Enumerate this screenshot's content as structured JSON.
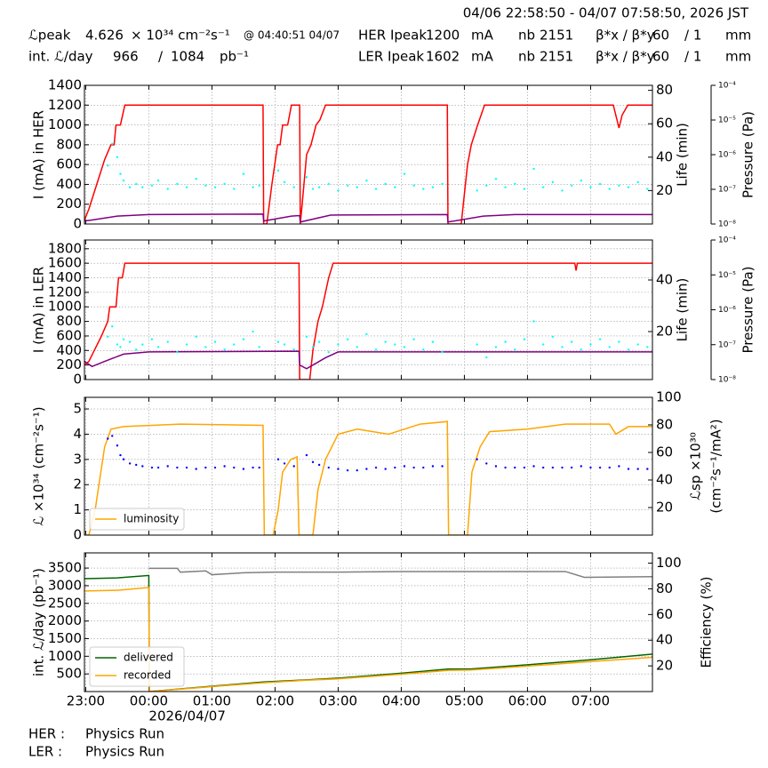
{
  "header": {
    "time_range": "04/06 22:58:50 - 04/07 07:58:50, 2026 JST",
    "row1": [
      "ℒpeak",
      "4.626",
      "× 10³⁴ cm⁻²s⁻¹",
      "@ 04:40:51 04/07",
      "HER Ipeak",
      "1200",
      "mA",
      "nb",
      "2151",
      "β*x / β*y",
      "60",
      "/ 1",
      "mm"
    ],
    "row2": [
      "int. ℒ/day",
      "966",
      "/",
      "1084",
      "pb⁻¹",
      "LER Ipeak",
      "1602",
      "mA",
      "nb",
      "2151",
      "β*x / β*y",
      "60",
      "/ 1",
      "mm"
    ]
  },
  "footer": {
    "rows": [
      [
        "HER :",
        "Physics Run"
      ],
      [
        "LER :",
        "Physics Run"
      ]
    ]
  },
  "chart_data": [
    {
      "type": "line",
      "ylabel": "I (mA) in HER",
      "y2label": [
        "Life (min)"
      ],
      "y3label": "Pressure (Pa)",
      "grid": true,
      "xlim": [
        22.98,
        31.98
      ],
      "ylim": [
        0,
        1400
      ],
      "yticks": [
        0,
        200,
        400,
        600,
        800,
        1000,
        1200,
        1400
      ],
      "y2lim": [
        0,
        83
      ],
      "y2ticks": [
        20,
        40,
        60,
        80
      ],
      "y3lim": [
        1e-08,
        0.0001
      ],
      "y3log": true,
      "y3ticks": [
        {
          "value": 1e-08,
          "label": "10⁻⁸"
        },
        {
          "value": 1e-07,
          "label": "10⁻⁷"
        },
        {
          "value": 1e-06,
          "label": "10⁻⁶"
        },
        {
          "value": 1e-05,
          "label": "10⁻⁵"
        },
        {
          "value": 0.0001,
          "label": "10⁻⁴"
        }
      ],
      "series": [
        {
          "color": "#ff0000",
          "style": "line",
          "x": [
            22.98,
            23.05,
            23.3,
            23.4,
            23.45,
            23.48,
            23.55,
            23.62,
            25.81,
            25.82,
            25.87,
            25.95,
            26.04,
            26.08,
            26.12,
            26.2,
            26.26,
            26.39,
            26.4,
            26.43,
            26.5,
            26.57,
            26.65,
            26.71,
            26.8,
            28.73,
            28.74,
            28.95,
            29.05,
            29.11,
            29.16,
            29.21,
            29.32,
            31.36,
            31.45,
            31.5,
            31.59,
            31.98
          ],
          "values": [
            40,
            150,
            650,
            800,
            800,
            1000,
            1000,
            1200,
            1200,
            0,
            0,
            400,
            800,
            800,
            1000,
            1000,
            1200,
            1200,
            0,
            200,
            700,
            800,
            1000,
            1050,
            1200,
            1200,
            0,
            0,
            600,
            800,
            900,
            1000,
            1200,
            1200,
            970,
            1100,
            1200,
            1200
          ]
        },
        {
          "color": "#800080",
          "style": "line",
          "x": [
            22.98,
            23.1,
            23.5,
            24.0,
            25.81,
            25.82,
            26.26,
            26.39,
            26.4,
            26.88,
            28.73,
            28.74,
            29.3,
            29.8,
            31.98
          ],
          "values": [
            30,
            40,
            80,
            95,
            100,
            30,
            80,
            85,
            20,
            90,
            95,
            20,
            80,
            95,
            95
          ]
        },
        {
          "color": "#00ffff",
          "style": "points",
          "axis": "y2",
          "x": [
            23.35,
            23.42,
            23.5,
            23.55,
            23.6,
            23.7,
            23.8,
            23.9,
            24.05,
            24.15,
            24.3,
            24.45,
            24.6,
            24.75,
            24.9,
            25.05,
            25.2,
            25.35,
            25.5,
            25.65,
            25.75,
            26.05,
            26.15,
            26.3,
            26.5,
            26.6,
            26.7,
            26.85,
            27.0,
            27.15,
            27.3,
            27.45,
            27.6,
            27.75,
            27.9,
            28.05,
            28.2,
            28.35,
            28.5,
            28.65,
            29.2,
            29.35,
            29.5,
            29.65,
            29.8,
            29.95,
            30.1,
            30.25,
            30.4,
            30.55,
            30.7,
            30.85,
            31.0,
            31.15,
            31.3,
            31.45,
            31.6,
            31.75,
            31.9
          ],
          "values": [
            35,
            48,
            40,
            30,
            26,
            22,
            24,
            22,
            23,
            26,
            21,
            24,
            22,
            27,
            23,
            22,
            24,
            21,
            30,
            22,
            23,
            32,
            25,
            22,
            28,
            21,
            22,
            24,
            20,
            23,
            22,
            26,
            21,
            24,
            22,
            30,
            23,
            21,
            22,
            24,
            20,
            23,
            27,
            22,
            24,
            21,
            33,
            22,
            25,
            20,
            23,
            26,
            22,
            24,
            21,
            23,
            22,
            25,
            21
          ]
        }
      ]
    },
    {
      "type": "line",
      "ylabel": "I (mA) in LER",
      "y2label": [
        "Life (min)"
      ],
      "y3label": "Pressure (Pa)",
      "grid": true,
      "xlim": [
        22.98,
        31.98
      ],
      "ylim": [
        0,
        1920
      ],
      "yticks": [
        0,
        200,
        400,
        600,
        800,
        1000,
        1200,
        1400,
        1600,
        1800
      ],
      "y2lim": [
        1.4,
        55.5
      ],
      "y2ticks": [
        20,
        40
      ],
      "y3lim": [
        1e-08,
        0.0001
      ],
      "y3log": true,
      "y3ticks": [
        {
          "value": 1e-08,
          "label": "10⁻⁸"
        },
        {
          "value": 1e-07,
          "label": "10⁻⁷"
        },
        {
          "value": 1e-06,
          "label": "10⁻⁶"
        },
        {
          "value": 1e-05,
          "label": "10⁻⁵"
        },
        {
          "value": 0.0001,
          "label": "10⁻⁴"
        }
      ],
      "series": [
        {
          "color": "#ff0000",
          "style": "line",
          "x": [
            22.98,
            23.05,
            23.25,
            23.35,
            23.38,
            23.48,
            23.52,
            23.58,
            23.62,
            26.38,
            26.39,
            26.55,
            26.6,
            26.68,
            26.75,
            26.8,
            26.85,
            26.92,
            30.75,
            30.77,
            30.79,
            31.98
          ],
          "values": [
            200,
            250,
            600,
            800,
            1000,
            1000,
            1400,
            1400,
            1600,
            1600,
            0,
            0,
            400,
            800,
            1000,
            1200,
            1400,
            1600,
            1600,
            1500,
            1600,
            1600
          ]
        },
        {
          "color": "#800080",
          "style": "line",
          "x": [
            22.98,
            23.1,
            23.3,
            23.6,
            24.0,
            26.38,
            26.39,
            26.5,
            26.8,
            27.0,
            31.98
          ],
          "values": [
            250,
            180,
            250,
            350,
            380,
            390,
            200,
            150,
            300,
            380,
            380
          ]
        },
        {
          "color": "#00ffff",
          "style": "points",
          "axis": "y2",
          "x": [
            23.35,
            23.42,
            23.5,
            23.55,
            23.6,
            23.7,
            23.8,
            23.9,
            24.05,
            24.15,
            24.3,
            24.45,
            24.6,
            24.75,
            24.9,
            25.05,
            25.2,
            25.35,
            25.5,
            25.65,
            25.75,
            26.05,
            26.15,
            26.3,
            26.5,
            26.6,
            26.7,
            26.85,
            27.0,
            27.15,
            27.3,
            27.45,
            27.6,
            27.75,
            27.9,
            28.05,
            28.2,
            28.35,
            28.5,
            28.65,
            29.2,
            29.35,
            29.5,
            29.65,
            29.8,
            29.95,
            30.1,
            30.25,
            30.4,
            30.55,
            30.7,
            30.85,
            31.0,
            31.15,
            31.3,
            31.45,
            31.6,
            31.75,
            31.9
          ],
          "values": [
            18,
            22,
            15,
            14,
            17,
            16,
            13,
            15,
            17,
            14,
            16,
            12,
            15,
            18,
            14,
            16,
            13,
            15,
            17,
            20,
            14,
            16,
            15,
            13,
            18,
            14,
            16,
            12,
            15,
            17,
            14,
            19,
            13,
            16,
            15,
            14,
            17,
            13,
            16,
            12,
            15,
            10,
            14,
            16,
            13,
            17,
            24,
            15,
            18,
            14,
            16,
            13,
            15,
            17,
            14,
            16,
            13,
            15,
            14
          ]
        }
      ]
    },
    {
      "type": "line",
      "ylabel": "ℒ ×10³⁴ (cm⁻²s⁻¹)",
      "y2label": [
        "ℒsp ×10³⁰",
        "(cm⁻²s⁻¹/mA²)"
      ],
      "grid": true,
      "legend": "lower left",
      "xlim": [
        22.98,
        31.98
      ],
      "ylim": [
        0,
        5.46
      ],
      "yticks": [
        0,
        1,
        2,
        3,
        4,
        5
      ],
      "y2lim": [
        0,
        100
      ],
      "y2ticks": [
        20,
        40,
        60,
        80,
        100
      ],
      "series": [
        {
          "name": "luminosity",
          "color": "#ffa500",
          "style": "line",
          "x": [
            22.98,
            23.05,
            23.15,
            23.3,
            23.4,
            23.6,
            24.5,
            25.81,
            25.83,
            25.97,
            26.05,
            26.12,
            26.25,
            26.35,
            26.38,
            26.6,
            26.68,
            26.8,
            27.0,
            27.3,
            27.8,
            28.3,
            28.73,
            28.75,
            29.05,
            29.12,
            29.25,
            29.4,
            30.0,
            30.6,
            31.3,
            31.4,
            31.6,
            31.98
          ],
          "values": [
            0,
            0,
            1,
            3.5,
            4.2,
            4.3,
            4.4,
            4.35,
            0,
            0,
            1,
            2.5,
            3,
            3.1,
            0,
            0,
            1.8,
            3,
            4.0,
            4.2,
            4.0,
            4.4,
            4.5,
            0,
            0,
            2.5,
            3.5,
            4.1,
            4.2,
            4.4,
            4.4,
            4.0,
            4.3,
            4.3
          ]
        },
        {
          "color": "#0000ff",
          "style": "points",
          "axis": "y2",
          "x": [
            23.35,
            23.42,
            23.5,
            23.55,
            23.6,
            23.7,
            23.8,
            23.9,
            24.05,
            24.15,
            24.3,
            24.45,
            24.6,
            24.75,
            24.9,
            25.05,
            25.2,
            25.35,
            25.5,
            25.65,
            25.75,
            26.05,
            26.15,
            26.3,
            26.5,
            26.6,
            26.7,
            26.85,
            27.0,
            27.15,
            27.3,
            27.45,
            27.6,
            27.75,
            27.9,
            28.05,
            28.2,
            28.35,
            28.5,
            28.65,
            29.2,
            29.35,
            29.5,
            29.65,
            29.8,
            29.95,
            30.1,
            30.25,
            30.4,
            30.55,
            30.7,
            30.85,
            31.0,
            31.15,
            31.3,
            31.45,
            31.6,
            31.75,
            31.9
          ],
          "values": [
            70,
            72,
            65,
            58,
            55,
            52,
            51,
            50,
            49,
            49,
            50,
            49,
            49,
            48,
            49,
            49,
            50,
            49,
            48,
            49,
            49,
            55,
            52,
            50,
            58,
            53,
            51,
            49,
            48,
            47,
            47,
            48,
            49,
            48,
            49,
            50,
            49,
            49,
            50,
            50,
            55,
            52,
            50,
            49,
            49,
            49,
            50,
            49,
            49,
            49,
            49,
            50,
            49,
            49,
            49,
            50,
            48,
            48,
            48
          ]
        }
      ]
    },
    {
      "type": "line",
      "ylabel": "int. ℒ/day (pb⁻¹)",
      "y2label": [
        "Efficiency (%)"
      ],
      "grid": true,
      "legend": "lower left",
      "x_sublabel": "2026/04/07",
      "xlim": [
        22.98,
        31.98
      ],
      "ylim": [
        0,
        3930
      ],
      "yticks": [
        500,
        1000,
        1500,
        2000,
        2500,
        3000,
        3500
      ],
      "y2lim": [
        0,
        108
      ],
      "y2ticks": [
        20,
        40,
        60,
        80,
        100
      ],
      "xticks": [
        {
          "value": 23,
          "label": "23:00"
        },
        {
          "value": 24,
          "label": "00:00"
        },
        {
          "value": 25,
          "label": "01:00"
        },
        {
          "value": 26,
          "label": "02:00"
        },
        {
          "value": 27,
          "label": "03:00"
        },
        {
          "value": 28,
          "label": "04:00"
        },
        {
          "value": 29,
          "label": "05:00"
        },
        {
          "value": 30,
          "label": "06:00"
        },
        {
          "value": 31,
          "label": "07:00"
        }
      ],
      "series": [
        {
          "color": "#808080",
          "style": "line",
          "axis": "y2",
          "x": [
            24.0,
            24.45,
            24.5,
            24.9,
            25.0,
            25.5,
            26.0,
            27.0,
            28.0,
            29.0,
            30.0,
            30.6,
            30.9,
            31.98
          ],
          "values": [
            96,
            96,
            93,
            94,
            91,
            92.5,
            93,
            93,
            93.5,
            93.5,
            93.5,
            93.5,
            89,
            89.5
          ]
        },
        {
          "name": "delivered",
          "color": "#006400",
          "style": "line",
          "x": [
            22.98,
            23.5,
            24.0,
            24.01,
            25.0,
            25.81,
            26.5,
            27.0,
            28.0,
            28.75,
            29.1,
            30.0,
            31.0,
            31.98
          ],
          "values": [
            3200,
            3220,
            3290,
            0,
            150,
            270,
            330,
            380,
            520,
            640,
            640,
            760,
            900,
            1060
          ]
        },
        {
          "name": "recorded",
          "color": "#ffa500",
          "style": "line",
          "x": [
            22.98,
            23.5,
            24.0,
            24.01,
            25.0,
            25.81,
            26.5,
            27.0,
            28.0,
            28.75,
            29.1,
            30.0,
            31.0,
            31.98
          ],
          "values": [
            2850,
            2870,
            2950,
            0,
            140,
            250,
            320,
            360,
            490,
            600,
            610,
            720,
            850,
            970
          ]
        }
      ]
    }
  ]
}
